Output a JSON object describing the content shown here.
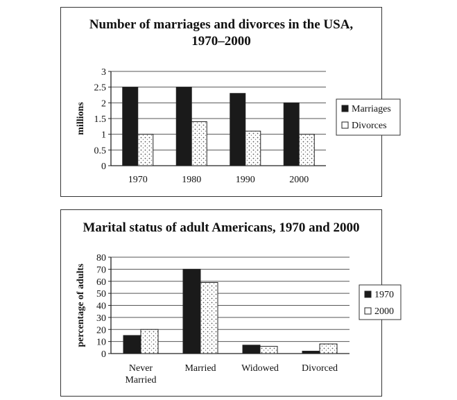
{
  "chart_data": [
    {
      "type": "bar",
      "title": "Number of marriages and divorces in the USA,",
      "subtitle": "1970–2000",
      "xlabel": "",
      "ylabel": "millions",
      "categories": [
        "1970",
        "1980",
        "1990",
        "2000"
      ],
      "series": [
        {
          "name": "Marriages",
          "values": [
            2.5,
            2.5,
            2.3,
            2.0
          ],
          "color": "#1a1a1a"
        },
        {
          "name": "Divorces",
          "values": [
            1.0,
            1.4,
            1.1,
            1.0
          ],
          "color": "#ffffff"
        }
      ],
      "ylim": [
        0,
        3
      ],
      "yticks": [
        "0",
        "0.5",
        "1",
        "1.5",
        "2",
        "2.5",
        "3"
      ],
      "grid": true,
      "legend": "right"
    },
    {
      "type": "bar",
      "title": "Marital status of adult Americans, 1970 and 2000",
      "xlabel": "",
      "ylabel": "percentage of adults",
      "categories": [
        [
          "Never",
          "Married"
        ],
        [
          "Married"
        ],
        [
          "Widowed"
        ],
        [
          "Divorced"
        ]
      ],
      "series": [
        {
          "name": "1970",
          "values": [
            15,
            70,
            7,
            2
          ],
          "color": "#1a1a1a"
        },
        {
          "name": "2000",
          "values": [
            20,
            59,
            6,
            8
          ],
          "color": "#ffffff"
        }
      ],
      "ylim": [
        0,
        80
      ],
      "yticks": [
        "0",
        "10",
        "20",
        "30",
        "40",
        "50",
        "60",
        "70",
        "80"
      ],
      "grid": true,
      "legend": "right"
    }
  ]
}
